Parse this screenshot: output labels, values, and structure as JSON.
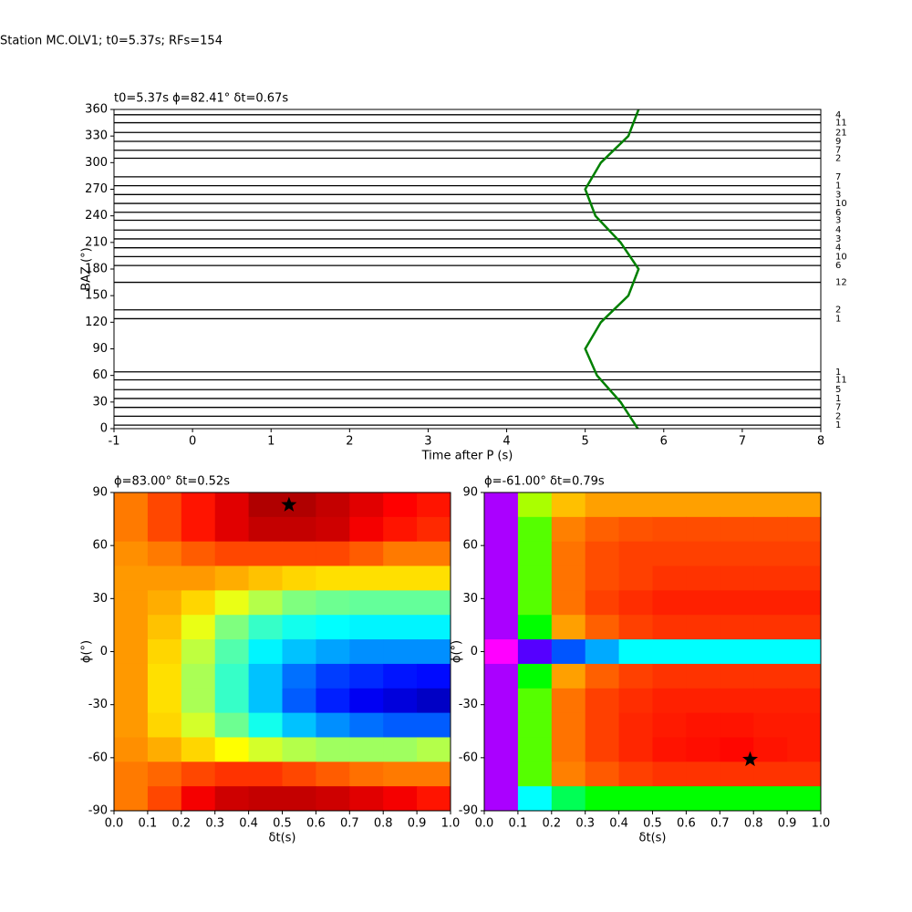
{
  "suptitle": "Station MC.OLV1; t0=5.37s; RFs=154",
  "chart_data": [
    {
      "type": "wiggle",
      "title": "t0=5.37s ϕ=82.41° δt=0.67s",
      "xlabel": "Time after P (s)",
      "ylabel": "BAZ (°)",
      "xlim": [
        -1,
        8
      ],
      "xticks": [
        -1,
        0,
        1,
        2,
        3,
        4,
        5,
        6,
        7,
        8
      ],
      "ylim": [
        0,
        360
      ],
      "yticks": [
        0,
        30,
        60,
        90,
        120,
        150,
        180,
        210,
        240,
        270,
        300,
        330,
        360
      ],
      "trace_color": "#000000",
      "baz": [
        354,
        345,
        334,
        324,
        314,
        305,
        284,
        274,
        264,
        254,
        244,
        235,
        224,
        214,
        204,
        194,
        184,
        165,
        134,
        124,
        64,
        55,
        44,
        34,
        24,
        14,
        4
      ],
      "counts": [
        "4",
        "11",
        "21",
        "9",
        "7",
        "2",
        "7",
        "1",
        "3",
        "10",
        "6",
        "3",
        "4",
        "3",
        "4",
        "10",
        "6",
        "12",
        "2",
        "1",
        "1",
        "11",
        "5",
        "1",
        "7",
        "2",
        "1"
      ],
      "curve": {
        "color": "#008000",
        "x": [
          5.67,
          5.45,
          5.15,
          5.0,
          5.2,
          5.55,
          5.68,
          5.45,
          5.13,
          5.0,
          5.2,
          5.55,
          5.68
        ],
        "y": [
          0,
          30,
          60,
          90,
          120,
          150,
          180,
          210,
          240,
          270,
          300,
          330,
          360
        ]
      }
    },
    {
      "type": "heatmap",
      "title": "ϕ=83.00° δt=0.52s",
      "xlabel": "δt(s)",
      "ylabel": "ϕ(°)",
      "xlim": [
        0,
        1
      ],
      "xticks": [
        {
          "value": 0,
          "label": "0.0"
        },
        0.1,
        0.2,
        0.3,
        0.4,
        0.5,
        0.6,
        0.7,
        0.8,
        0.9,
        {
          "value": 1,
          "label": "1.0"
        }
      ],
      "ylim": [
        -90,
        90
      ],
      "yticks": [
        -90,
        -60,
        -30,
        0,
        30,
        60,
        90
      ],
      "colormap": [
        [
          0,
          "#00007f"
        ],
        [
          0.11,
          "#0000ff"
        ],
        [
          0.36,
          "#00ffff"
        ],
        [
          0.5,
          "#7fff7f"
        ],
        [
          0.62,
          "#ffff00"
        ],
        [
          0.87,
          "#ff0000"
        ],
        [
          1,
          "#7f0000"
        ]
      ],
      "star": {
        "x": 0.52,
        "y": 83
      },
      "z": [
        [
          0.75,
          0.8,
          0.85,
          0.9,
          0.95,
          0.95,
          0.93,
          0.9,
          0.87,
          0.85
        ],
        [
          0.75,
          0.8,
          0.85,
          0.9,
          0.93,
          0.93,
          0.92,
          0.88,
          0.85,
          0.83
        ],
        [
          0.73,
          0.75,
          0.78,
          0.8,
          0.8,
          0.8,
          0.8,
          0.78,
          0.75,
          0.75
        ],
        [
          0.72,
          0.72,
          0.72,
          0.7,
          0.68,
          0.66,
          0.65,
          0.65,
          0.65,
          0.65
        ],
        [
          0.72,
          0.7,
          0.66,
          0.6,
          0.55,
          0.5,
          0.48,
          0.47,
          0.47,
          0.47
        ],
        [
          0.72,
          0.68,
          0.6,
          0.5,
          0.42,
          0.38,
          0.36,
          0.35,
          0.35,
          0.35
        ],
        [
          0.72,
          0.66,
          0.56,
          0.45,
          0.35,
          0.3,
          0.27,
          0.25,
          0.25,
          0.25
        ],
        [
          0.72,
          0.65,
          0.54,
          0.42,
          0.3,
          0.22,
          0.17,
          0.15,
          0.13,
          0.12
        ],
        [
          0.72,
          0.65,
          0.54,
          0.42,
          0.3,
          0.2,
          0.14,
          0.1,
          0.08,
          0.06
        ],
        [
          0.72,
          0.66,
          0.58,
          0.48,
          0.38,
          0.3,
          0.25,
          0.22,
          0.2,
          0.2
        ],
        [
          0.73,
          0.7,
          0.66,
          0.62,
          0.58,
          0.55,
          0.53,
          0.53,
          0.53,
          0.55
        ],
        [
          0.75,
          0.77,
          0.8,
          0.82,
          0.82,
          0.8,
          0.78,
          0.76,
          0.75,
          0.75
        ],
        [
          0.75,
          0.8,
          0.88,
          0.92,
          0.93,
          0.93,
          0.92,
          0.9,
          0.88,
          0.85
        ]
      ]
    },
    {
      "type": "heatmap",
      "title": "ϕ=-61.00° δt=0.79s",
      "xlabel": "δt(s)",
      "ylabel": "ϕ(°)",
      "xlim": [
        0,
        1
      ],
      "xticks": [
        {
          "value": 0,
          "label": "0.0"
        },
        0.1,
        0.2,
        0.3,
        0.4,
        0.5,
        0.6,
        0.7,
        0.8,
        0.9,
        {
          "value": 1,
          "label": "1.0"
        }
      ],
      "ylim": [
        -90,
        90
      ],
      "yticks": [
        -90,
        -60,
        -30,
        0,
        30,
        60,
        90
      ],
      "colormap": [
        [
          0,
          "#ff00ff"
        ],
        [
          0.15,
          "#0000ff"
        ],
        [
          0.3,
          "#00ffff"
        ],
        [
          0.45,
          "#00ff00"
        ],
        [
          0.6,
          "#ffff00"
        ],
        [
          0.8,
          "#ff8000"
        ],
        [
          1,
          "#ff0000"
        ]
      ],
      "star": {
        "x": 0.79,
        "y": -61
      },
      "z": [
        [
          0.05,
          0.55,
          0.7,
          0.75,
          0.75,
          0.75,
          0.75,
          0.75,
          0.75,
          0.75
        ],
        [
          0.05,
          0.5,
          0.8,
          0.85,
          0.87,
          0.88,
          0.88,
          0.88,
          0.88,
          0.88
        ],
        [
          0.05,
          0.5,
          0.82,
          0.88,
          0.9,
          0.9,
          0.9,
          0.9,
          0.9,
          0.9
        ],
        [
          0.05,
          0.5,
          0.82,
          0.88,
          0.9,
          0.92,
          0.92,
          0.92,
          0.92,
          0.92
        ],
        [
          0.05,
          0.5,
          0.82,
          0.9,
          0.93,
          0.95,
          0.95,
          0.95,
          0.95,
          0.95
        ],
        [
          0.05,
          0.45,
          0.75,
          0.85,
          0.9,
          0.92,
          0.92,
          0.92,
          0.92,
          0.92
        ],
        [
          0.0,
          0.1,
          0.2,
          0.25,
          0.3,
          0.3,
          0.3,
          0.3,
          0.3,
          0.3
        ],
        [
          0.05,
          0.45,
          0.75,
          0.85,
          0.9,
          0.92,
          0.92,
          0.92,
          0.92,
          0.92
        ],
        [
          0.05,
          0.5,
          0.82,
          0.9,
          0.93,
          0.95,
          0.95,
          0.95,
          0.95,
          0.95
        ],
        [
          0.05,
          0.5,
          0.82,
          0.9,
          0.94,
          0.96,
          0.97,
          0.97,
          0.96,
          0.96
        ],
        [
          0.05,
          0.5,
          0.82,
          0.9,
          0.94,
          0.97,
          0.98,
          0.99,
          0.97,
          0.96
        ],
        [
          0.05,
          0.5,
          0.8,
          0.86,
          0.9,
          0.92,
          0.92,
          0.92,
          0.92,
          0.92
        ],
        [
          0.05,
          0.3,
          0.4,
          0.45,
          0.45,
          0.45,
          0.45,
          0.45,
          0.45,
          0.45
        ]
      ]
    }
  ]
}
